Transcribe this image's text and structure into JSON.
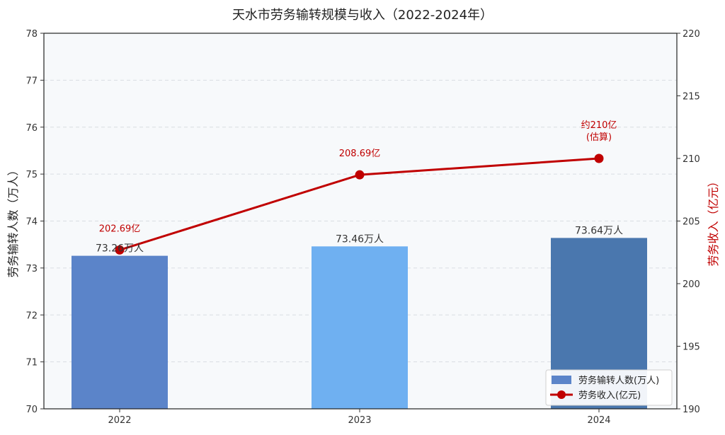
{
  "chart_data": {
    "type": "bar",
    "title": "天水市劳务输转规模与收入（2022-2024年）",
    "categories": [
      "2022",
      "2023",
      "2024"
    ],
    "y_left": {
      "label": "劳务输转人数（万人）",
      "range": [
        70,
        78
      ],
      "ticks": [
        "70",
        "71",
        "72",
        "73",
        "74",
        "75",
        "76",
        "77",
        "78"
      ]
    },
    "y_right": {
      "label": "劳务收入（亿元）",
      "range": [
        190,
        220
      ],
      "ticks": [
        "190",
        "195",
        "200",
        "205",
        "210",
        "215",
        "220"
      ]
    },
    "grid": true,
    "legend_position": "bottom-right",
    "series": [
      {
        "name": "劳务输转人数(万人)",
        "type": "bar",
        "axis": "left",
        "values": [
          73.26,
          73.46,
          73.64
        ],
        "labels": [
          "73.26万人",
          "73.46万人",
          "73.64万人"
        ],
        "colors": [
          "#5b84c9",
          "#6fb0f1",
          "#4a77ae"
        ]
      },
      {
        "name": "劳务收入(亿元)",
        "type": "line",
        "axis": "right",
        "values": [
          202.69,
          208.69,
          210
        ],
        "labels": [
          "202.69亿",
          "208.69亿",
          "约210亿\n(估算)"
        ],
        "color": "#c00000"
      }
    ]
  }
}
